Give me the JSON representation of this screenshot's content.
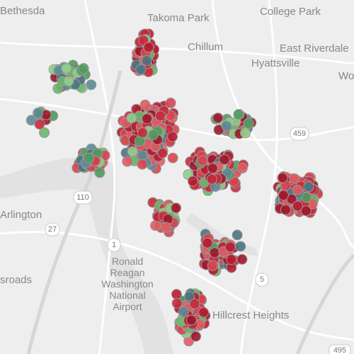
{
  "labels": {
    "bethesda": "Bethesda",
    "takoma_park": "Takoma Park",
    "college_park": "College Park",
    "chillum": "Chillum",
    "east_riverdale": "East Riverdale",
    "hyattsville": "Hyattsville",
    "edge_east": "Wo",
    "arlington": "Arlington",
    "edge_west": "sroads",
    "airport_1": "Ronald",
    "airport_2": "Reagan",
    "airport_3": "Washington",
    "airport_4": "National",
    "airport_5": "Airport",
    "hillcrest_heights": "Hillcrest Heights"
  },
  "shields": {
    "r459": "459",
    "r110": "110",
    "r27": "27",
    "r1": "1",
    "r5": "5",
    "r495": "495"
  }
}
